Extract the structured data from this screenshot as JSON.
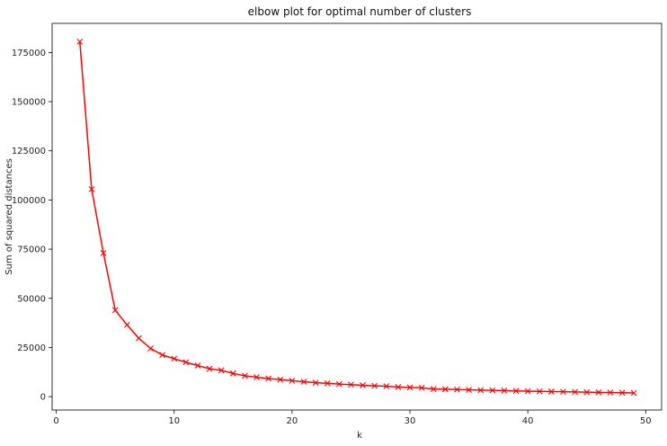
{
  "chart_data": {
    "type": "line",
    "title": "elbow plot for optimal number of clusters",
    "xlabel": "k",
    "ylabel": "Sum of squared distances",
    "xlim": [
      -0.35,
      51.35
    ],
    "ylim": [
      -6800,
      189800
    ],
    "xticks": [
      0,
      10,
      20,
      30,
      40,
      50
    ],
    "yticks": [
      0,
      25000,
      50000,
      75000,
      100000,
      125000,
      150000,
      175000
    ],
    "grid": false,
    "series": [
      {
        "color": "#ff0000",
        "marker": "x",
        "x": [
          2,
          3,
          4,
          5,
          6,
          7,
          8,
          9,
          10,
          11,
          12,
          13,
          14,
          15,
          16,
          17,
          18,
          19,
          20,
          21,
          22,
          23,
          24,
          25,
          26,
          27,
          28,
          29,
          30,
          31,
          32,
          33,
          34,
          35,
          36,
          37,
          38,
          39,
          40,
          41,
          42,
          43,
          44,
          45,
          46,
          47,
          48,
          49
        ],
        "y": [
          180500,
          105500,
          73000,
          44000,
          36500,
          29700,
          24500,
          21200,
          19300,
          17500,
          15800,
          14200,
          13400,
          11800,
          10600,
          9900,
          9200,
          8700,
          8100,
          7600,
          7100,
          6800,
          6400,
          6100,
          5800,
          5500,
          5300,
          4900,
          4700,
          4500,
          3900,
          3800,
          3600,
          3500,
          3300,
          3200,
          3100,
          2900,
          2800,
          2700,
          2600,
          2500,
          2400,
          2300,
          2200,
          2100,
          2000,
          1900
        ]
      }
    ]
  }
}
